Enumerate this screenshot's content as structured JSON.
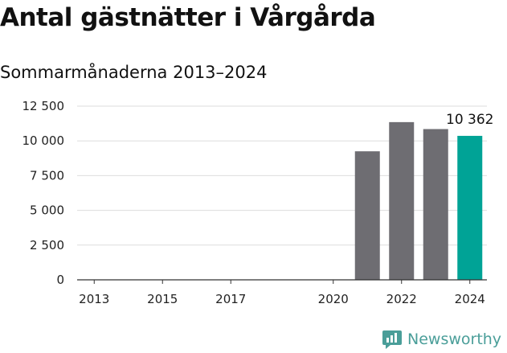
{
  "title": "Antal gästnätter i Vårgårda",
  "subtitle": "Sommarmånaderna 2013–2024",
  "brand": {
    "name": "Newsworthy",
    "icon": "newsworthy-logo-icon",
    "color": "#4a9e99"
  },
  "colors": {
    "bar": "#6e6d72",
    "highlight": "#00a396",
    "grid": "#dddddd",
    "axis": "#333333"
  },
  "chart_data": {
    "type": "bar",
    "title": "Antal gästnätter i Vårgårda",
    "subtitle": "Sommarmånaderna 2013–2024",
    "xlabel": "",
    "ylabel": "",
    "x": [
      2013,
      2014,
      2015,
      2016,
      2017,
      2018,
      2019,
      2020,
      2021,
      2022,
      2023,
      2024
    ],
    "values": [
      null,
      null,
      null,
      null,
      null,
      null,
      null,
      null,
      9250,
      11350,
      10850,
      10362
    ],
    "highlight_index": 11,
    "xticks": [
      2013,
      2015,
      2017,
      2020,
      2022,
      2024
    ],
    "yticks": [
      0,
      2500,
      5000,
      7500,
      10000,
      12500
    ],
    "ytick_labels": [
      "0",
      "2 500",
      "5 000",
      "7 500",
      "10 000",
      "12 500"
    ],
    "ylim": [
      0,
      12500
    ],
    "data_labels": [
      {
        "index": 11,
        "text": "10 362"
      }
    ],
    "grid": "horizontal",
    "legend": "none"
  }
}
